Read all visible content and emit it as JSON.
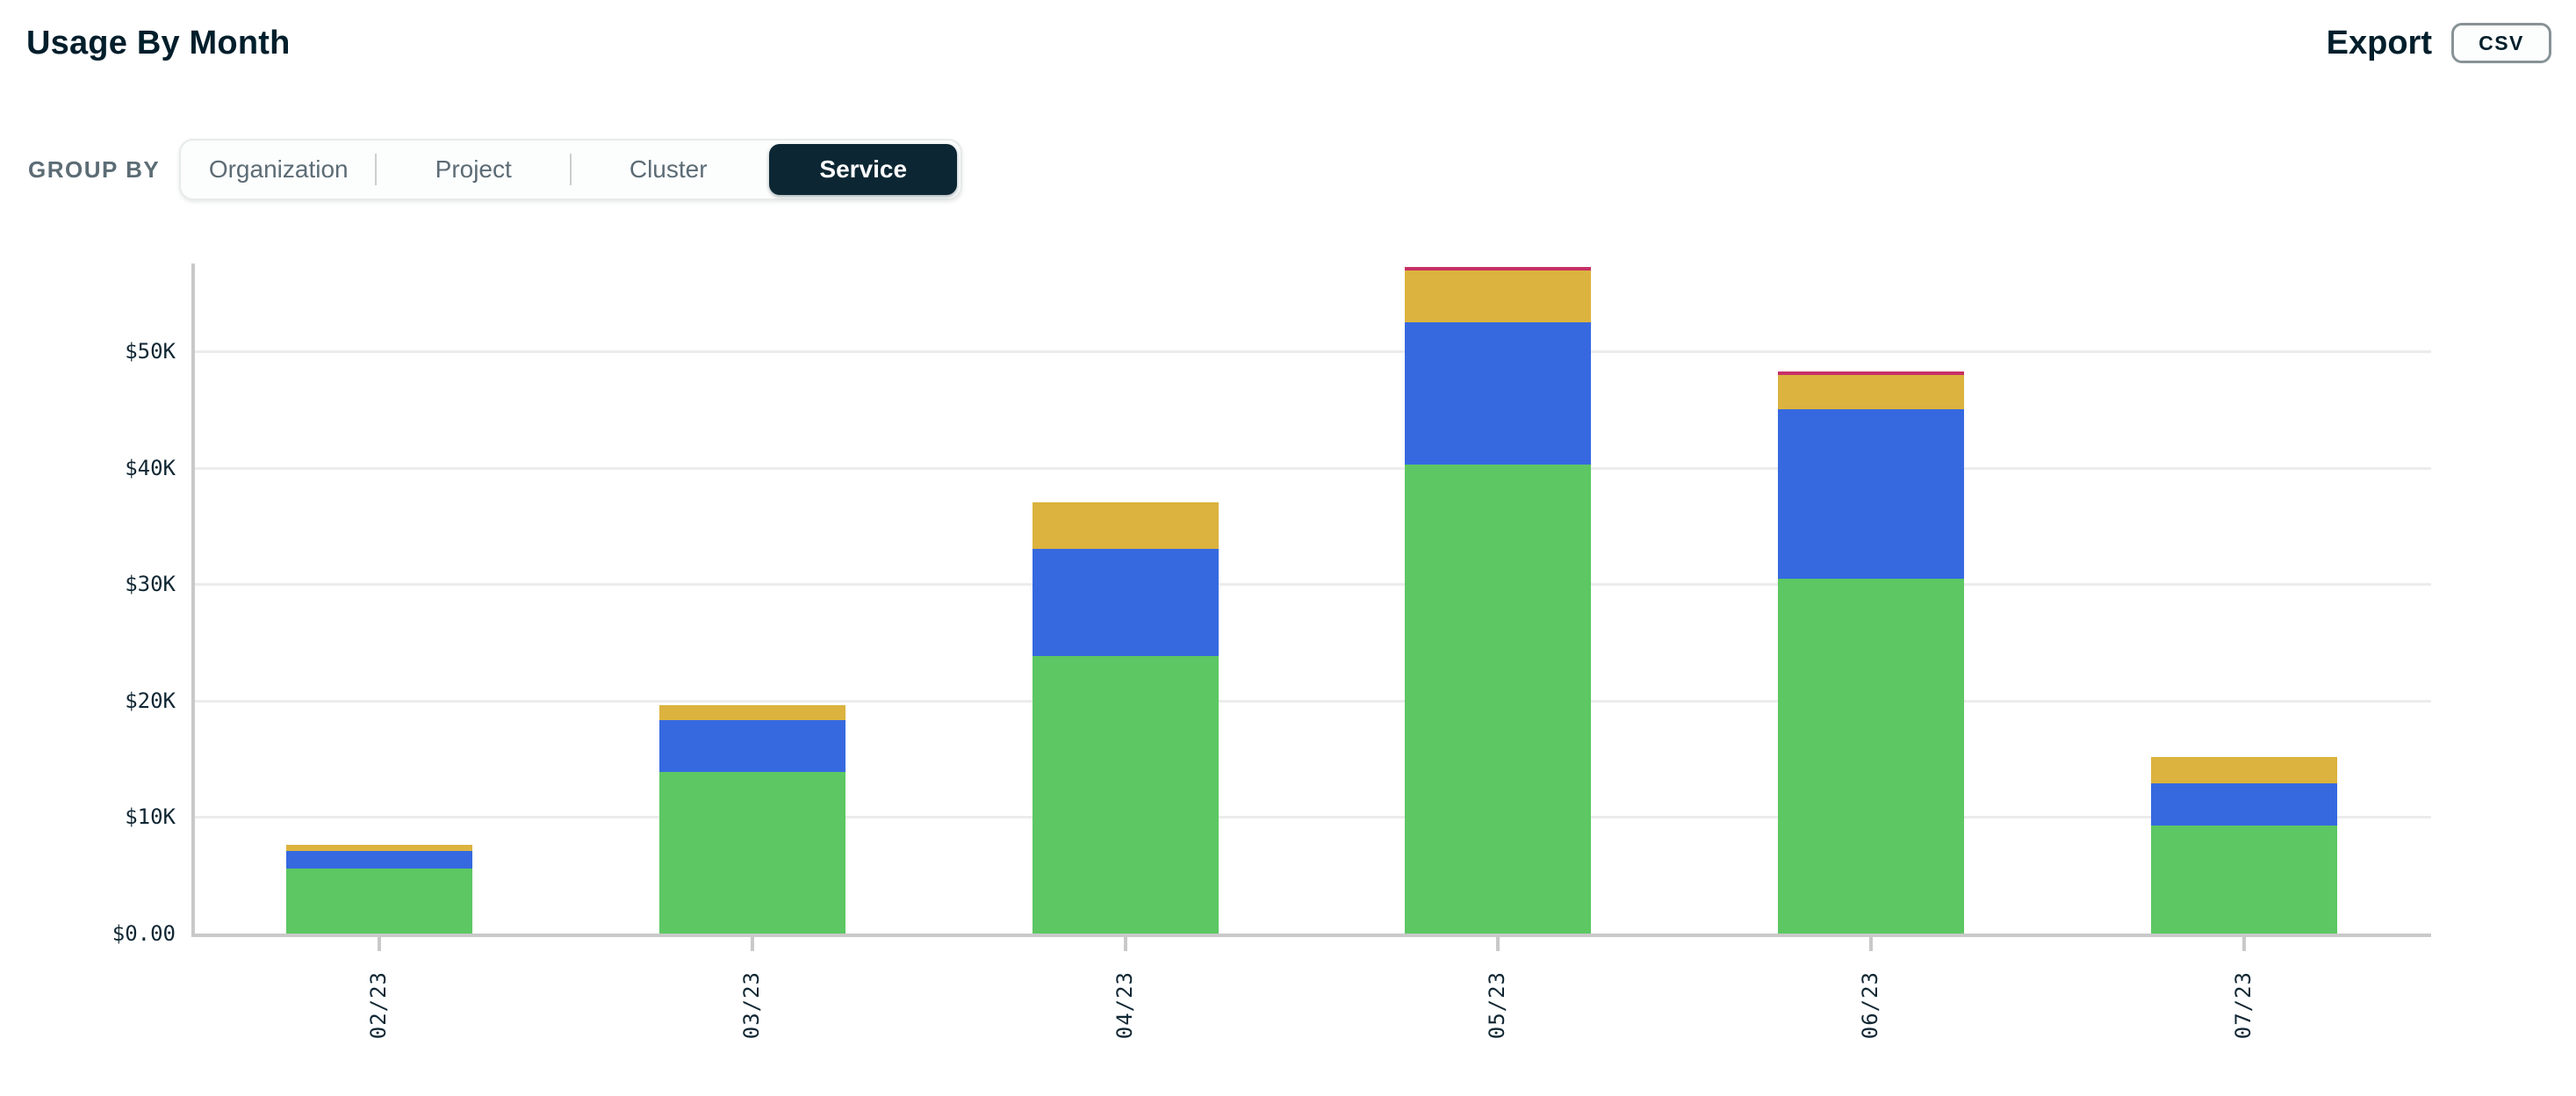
{
  "header": {
    "title": "Usage By Month",
    "export_label": "Export",
    "csv_button_label": "CSV"
  },
  "group_by": {
    "label": "GROUP BY",
    "options": [
      {
        "label": "Organization",
        "selected": false
      },
      {
        "label": "Project",
        "selected": false
      },
      {
        "label": "Cluster",
        "selected": false
      },
      {
        "label": "Service",
        "selected": true
      }
    ]
  },
  "chart_data": {
    "type": "bar",
    "stacked": true,
    "title": "Usage By Month",
    "xlabel": "",
    "ylabel": "",
    "grid": "horizontal",
    "legend": "none",
    "categories": [
      "02/23",
      "03/23",
      "04/23",
      "05/23",
      "06/23",
      "07/23"
    ],
    "series": [
      {
        "name": "green-segment",
        "color": "#5CC763",
        "values": [
          5600,
          13900,
          23800,
          40300,
          30500,
          9300
        ]
      },
      {
        "name": "blue-segment",
        "color": "#3669E0",
        "values": [
          1500,
          4400,
          9200,
          12200,
          14500,
          3600
        ]
      },
      {
        "name": "gold-segment",
        "color": "#DBB33E",
        "values": [
          550,
          1300,
          4000,
          4450,
          2950,
          2250
        ]
      },
      {
        "name": "pink-segment",
        "color": "#C73067",
        "values": [
          0,
          0,
          0,
          300,
          300,
          0
        ]
      }
    ],
    "totals": [
      7650,
      19600,
      37000,
      57250,
      48250,
      15150
    ],
    "y_ticks": [
      {
        "value": 0,
        "label": "$0.00"
      },
      {
        "value": 10000,
        "label": "$10K"
      },
      {
        "value": 20000,
        "label": "$20K"
      },
      {
        "value": 30000,
        "label": "$30K"
      },
      {
        "value": 40000,
        "label": "$40K"
      },
      {
        "value": 50000,
        "label": "$50K"
      }
    ],
    "ylim": [
      0,
      57500
    ]
  },
  "colors": {
    "accent_dark": "#0C2733",
    "muted_label": "#5C6C75",
    "grid_line": "#ECECEC",
    "axis_line": "#C9C9C9"
  }
}
